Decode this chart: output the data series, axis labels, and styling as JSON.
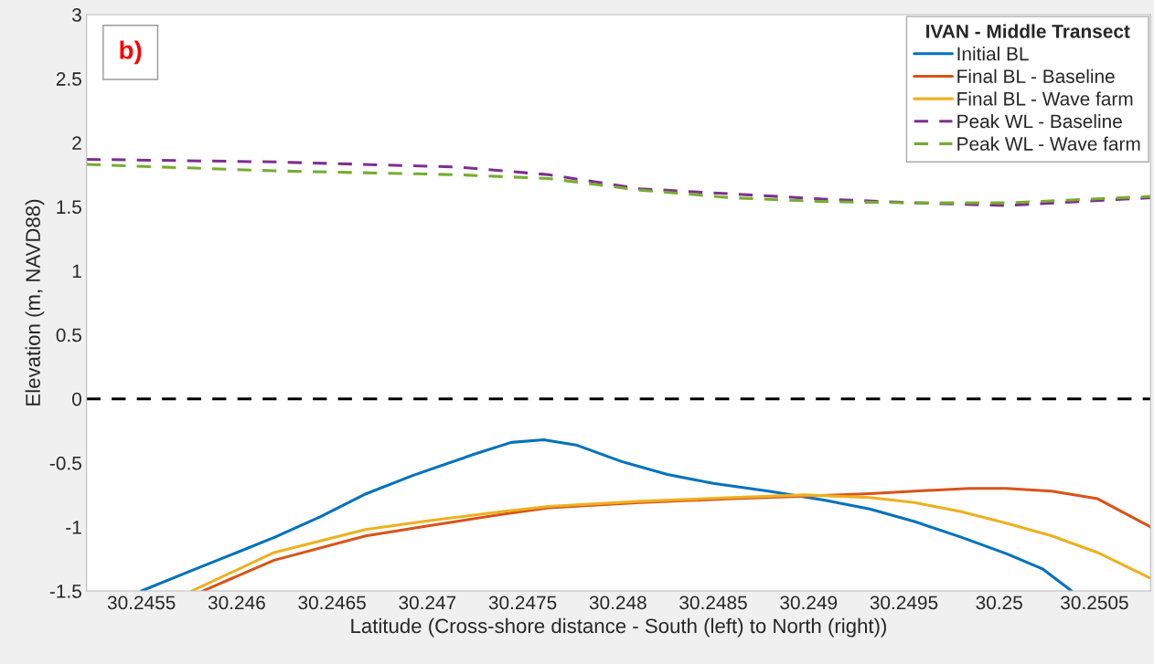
{
  "chart_data": {
    "type": "line",
    "xlabel": "Latitude (Cross-shore distance - South (left) to North (right))",
    "ylabel": "Elevation (m, NAVD88)",
    "legend_title": "IVAN - Middle Transect",
    "legend": "top right",
    "grid": false,
    "xlim": [
      30.245212,
      30.250794
    ],
    "ylim": [
      -1.5,
      3
    ],
    "xticks": [
      {
        "value": 30.2455,
        "label": "30.2455"
      },
      {
        "value": 30.246,
        "label": "30.246"
      },
      {
        "value": 30.2465,
        "label": "30.2465"
      },
      {
        "value": 30.247,
        "label": "30.247"
      },
      {
        "value": 30.2475,
        "label": "30.2475"
      },
      {
        "value": 30.248,
        "label": "30.248"
      },
      {
        "value": 30.2485,
        "label": "30.2485"
      },
      {
        "value": 30.249,
        "label": "30.249"
      },
      {
        "value": 30.2495,
        "label": "30.2495"
      },
      {
        "value": 30.25,
        "label": "30.25"
      },
      {
        "value": 30.2505,
        "label": "30.2505"
      }
    ],
    "yticks": [
      -1.5,
      -1,
      -0.5,
      0,
      0.5,
      1,
      1.5,
      2,
      2.5,
      3
    ],
    "ref_lines": [
      {
        "axis": "y",
        "value": 0,
        "color": "#000000",
        "line_style": "dashed"
      }
    ],
    "annotations": [
      "b)"
    ],
    "series": [
      {
        "name": "Initial BL",
        "color": "#0072bd",
        "line_style": "solid",
        "x": [
          30.2455,
          30.245764,
          30.246,
          30.2462,
          30.24644,
          30.24668,
          30.24692,
          30.24725,
          30.24744,
          30.24761,
          30.24778,
          30.24802,
          30.24826,
          30.2485,
          30.24879,
          30.24908,
          30.24932,
          30.24956,
          30.2498,
          30.25004,
          30.25023,
          30.25038
        ],
        "values": [
          -1.5,
          -1.34,
          -1.2,
          -1.08,
          -0.92,
          -0.74,
          -0.6,
          -0.43,
          -0.34,
          -0.32,
          -0.36,
          -0.49,
          -0.59,
          -0.66,
          -0.72,
          -0.79,
          -0.86,
          -0.96,
          -1.08,
          -1.21,
          -1.33,
          -1.5
        ]
      },
      {
        "name": "Final BL - Baseline",
        "color": "#d95319",
        "line_style": "solid",
        "x": [
          30.245822,
          30.246196,
          30.246676,
          30.247012,
          30.247396,
          30.247636,
          30.248116,
          30.248596,
          30.24898,
          30.24932,
          30.249556,
          30.249844,
          30.250036,
          30.250276,
          30.250516,
          30.250794
        ],
        "values": [
          -1.5,
          -1.26,
          -1.07,
          -0.99,
          -0.9,
          -0.85,
          -0.81,
          -0.78,
          -0.76,
          -0.74,
          -0.72,
          -0.7,
          -0.7,
          -0.72,
          -0.78,
          -1.0
        ]
      },
      {
        "name": "Final BL - Wave farm",
        "color": "#edb120",
        "line_style": "solid",
        "x": [
          30.245764,
          30.246196,
          30.246676,
          30.247012,
          30.247396,
          30.247636,
          30.248116,
          30.248596,
          30.24898,
          30.24932,
          30.249556,
          30.249796,
          30.250036,
          30.250276,
          30.250516,
          30.250794
        ],
        "values": [
          -1.5,
          -1.2,
          -1.02,
          -0.95,
          -0.88,
          -0.84,
          -0.8,
          -0.77,
          -0.75,
          -0.77,
          -0.81,
          -0.88,
          -0.97,
          -1.07,
          -1.2,
          -1.4
        ]
      },
      {
        "name": "Peak WL - Baseline",
        "color": "#7e2f8e",
        "line_style": "dashed",
        "x": [
          30.245212,
          30.246196,
          30.247156,
          30.247636,
          30.248116,
          30.248596,
          30.249076,
          30.249556,
          30.250036,
          30.250794
        ],
        "values": [
          1.87,
          1.85,
          1.81,
          1.75,
          1.64,
          1.6,
          1.56,
          1.53,
          1.51,
          1.57
        ]
      },
      {
        "name": "Peak WL - Wave farm",
        "color": "#77ac30",
        "line_style": "dashed",
        "x": [
          30.245212,
          30.246196,
          30.247156,
          30.247636,
          30.248116,
          30.248596,
          30.249076,
          30.249556,
          30.250036,
          30.250794
        ],
        "values": [
          1.83,
          1.78,
          1.75,
          1.72,
          1.63,
          1.57,
          1.54,
          1.53,
          1.53,
          1.58
        ]
      }
    ]
  }
}
